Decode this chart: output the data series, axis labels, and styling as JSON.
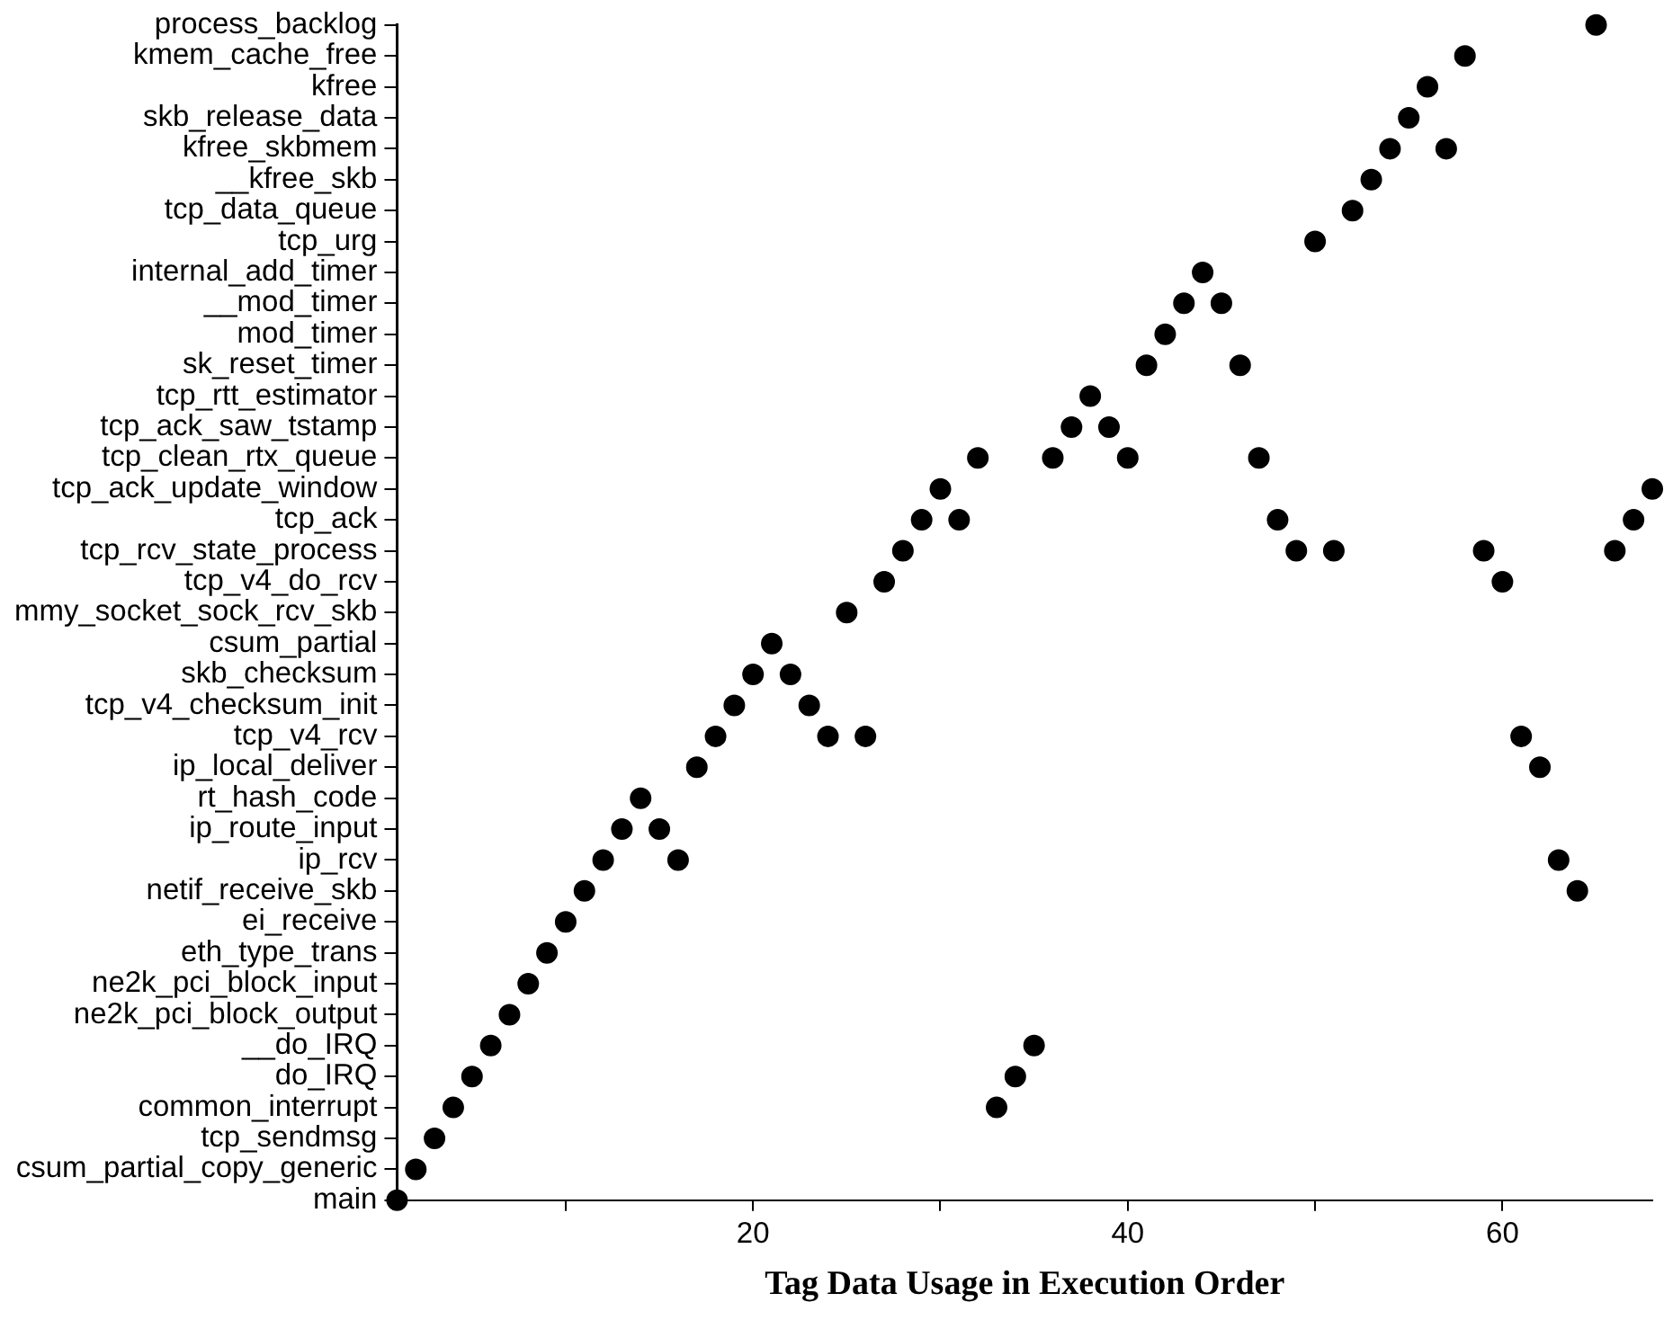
{
  "chart_data": {
    "type": "scatter",
    "orientation": "horizontal",
    "xlabel": "Tag Data Usage in Execution Order",
    "categories": [
      "process_backlog",
      "kmem_cache_free",
      "kfree",
      "skb_release_data",
      "kfree_skbmem",
      "__kfree_skb",
      "tcp_data_queue",
      "tcp_urg",
      "internal_add_timer",
      "__mod_timer",
      "mod_timer",
      "sk_reset_timer",
      "tcp_rtt_estimator",
      "tcp_ack_saw_tstamp",
      "tcp_clean_rtx_queue",
      "tcp_ack_update_window",
      "tcp_ack",
      "tcp_rcv_state_process",
      "tcp_v4_do_rcv",
      "mmy_socket_sock_rcv_skb",
      "csum_partial",
      "skb_checksum",
      "tcp_v4_checksum_init",
      "tcp_v4_rcv",
      "ip_local_deliver",
      "rt_hash_code",
      "ip_route_input",
      "ip_rcv",
      "netif_receive_skb",
      "ei_receive",
      "eth_type_trans",
      "ne2k_pci_block_input",
      "ne2k_pci_block_output",
      "__do_IRQ",
      "do_IRQ",
      "common_interrupt",
      "tcp_sendmsg",
      "csum_partial_copy_generic",
      "main"
    ],
    "series": [
      {
        "color": "#000000",
        "x": [
          "main",
          "csum_partial_copy_generic",
          "tcp_sendmsg",
          "common_interrupt",
          "do_IRQ",
          "__do_IRQ",
          "ne2k_pci_block_output",
          "ne2k_pci_block_input",
          "eth_type_trans",
          "ei_receive",
          "netif_receive_skb",
          "ip_rcv",
          "ip_route_input",
          "rt_hash_code",
          "ip_route_input",
          "ip_rcv",
          "ip_local_deliver",
          "tcp_v4_rcv",
          "tcp_v4_checksum_init",
          "skb_checksum",
          "csum_partial",
          "skb_checksum",
          "tcp_v4_checksum_init",
          "tcp_v4_rcv",
          "mmy_socket_sock_rcv_skb",
          "tcp_v4_rcv",
          "tcp_v4_do_rcv",
          "tcp_rcv_state_process",
          "tcp_ack",
          "tcp_ack_update_window",
          "tcp_ack",
          "tcp_clean_rtx_queue",
          "common_interrupt",
          "do_IRQ",
          "__do_IRQ",
          "tcp_clean_rtx_queue",
          "tcp_ack_saw_tstamp",
          "tcp_rtt_estimator",
          "tcp_ack_saw_tstamp",
          "tcp_clean_rtx_queue",
          "sk_reset_timer",
          "mod_timer",
          "__mod_timer",
          "internal_add_timer",
          "__mod_timer",
          "sk_reset_timer",
          "tcp_clean_rtx_queue",
          "tcp_ack",
          "tcp_rcv_state_process",
          "tcp_urg",
          "tcp_rcv_state_process",
          "tcp_data_queue",
          "__kfree_skb",
          "kfree_skbmem",
          "skb_release_data",
          "kfree",
          "kfree_skbmem",
          "kmem_cache_free",
          "tcp_rcv_state_process",
          "tcp_v4_do_rcv",
          "tcp_v4_rcv",
          "ip_local_deliver",
          "ip_rcv",
          "netif_receive_skb",
          "process_backlog",
          "tcp_rcv_state_process",
          "tcp_ack",
          "tcp_ack_update_window"
        ],
        "values": [
          1,
          2,
          3,
          4,
          5,
          6,
          7,
          8,
          9,
          10,
          11,
          12,
          13,
          14,
          15,
          16,
          17,
          18,
          19,
          20,
          21,
          22,
          23,
          24,
          25,
          26,
          27,
          28,
          29,
          30,
          31,
          32,
          33,
          34,
          35,
          36,
          37,
          38,
          39,
          40,
          41,
          42,
          43,
          44,
          45,
          46,
          47,
          48,
          49,
          50,
          51,
          52,
          53,
          54,
          55,
          56,
          57,
          58,
          59,
          60,
          61,
          62,
          63,
          64,
          65,
          66,
          67,
          68
        ]
      }
    ],
    "marker": "circle",
    "xlim": [
      1,
      68
    ],
    "xticks": [
      {
        "value": 10,
        "label": null
      },
      20,
      {
        "value": 30,
        "label": null
      },
      40,
      {
        "value": 50,
        "label": null
      },
      60
    ]
  }
}
